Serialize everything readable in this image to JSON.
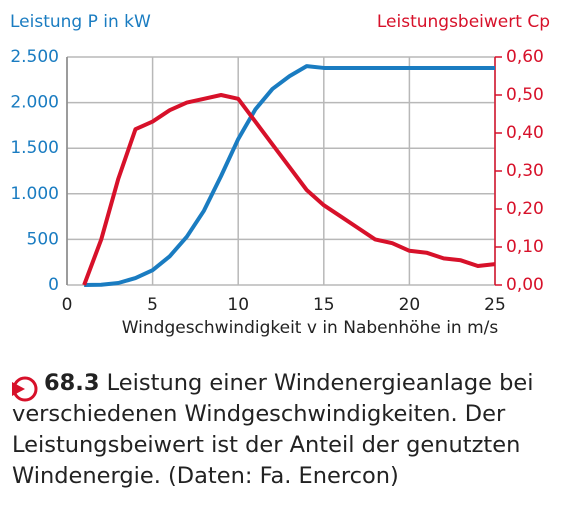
{
  "chart_data": {
    "type": "line",
    "y_label": "Leistung P in kW",
    "y2_label": "Leistungsbeiwert Cp",
    "x_label": "Windgeschwindigkeit v in Nabenhöhe in m/s",
    "x": [
      1,
      2,
      3,
      4,
      5,
      6,
      7,
      8,
      9,
      10,
      11,
      12,
      13,
      14,
      15,
      16,
      17,
      18,
      19,
      20,
      21,
      22,
      23,
      24,
      25
    ],
    "series": [
      {
        "name": "Leistung P",
        "color": "#1a7cc1",
        "values": [
          0,
          3,
          22,
          76,
          163,
          315,
          530,
          815,
          1195,
          1600,
          1925,
          2150,
          2290,
          2400,
          2380,
          2380,
          2380,
          2380,
          2380,
          2380,
          2380,
          2380,
          2380,
          2380,
          2380
        ]
      },
      {
        "name": "Leistungsbeiwert Cp",
        "color": "#d7112a",
        "axis": "y2",
        "values": [
          0,
          0.12,
          0.28,
          0.41,
          0.43,
          0.46,
          0.48,
          0.49,
          0.5,
          0.49,
          0.43,
          0.37,
          0.31,
          0.25,
          0.21,
          0.18,
          0.15,
          0.12,
          0.11,
          0.09,
          0.085,
          0.07,
          0.065,
          0.05,
          0.055
        ]
      }
    ],
    "xlim": [
      0,
      25
    ],
    "xticks": [
      0,
      5,
      10,
      15,
      20,
      25
    ],
    "ylim": [
      0,
      2500
    ],
    "yticks": [
      0,
      500,
      {
        "value": 1000,
        "label": "1.000"
      },
      {
        "value": 1500,
        "label": "1.500"
      },
      {
        "value": 2000,
        "label": "2.000"
      },
      {
        "value": 2500,
        "label": "2.500"
      }
    ],
    "y2lim": [
      0,
      0.6
    ],
    "y2ticks": [
      {
        "value": 0,
        "label": "0,00"
      },
      {
        "value": 0.1,
        "label": "0,10"
      },
      {
        "value": 0.2,
        "label": "0,20"
      },
      {
        "value": 0.3,
        "label": "0,30"
      },
      {
        "value": 0.4,
        "label": "0,40"
      },
      {
        "value": 0.5,
        "label": "0,50"
      },
      {
        "value": 0.6,
        "label": "0,60"
      }
    ],
    "grid": true
  },
  "caption": {
    "number": "68.3",
    "text": "Leistung einer Windenergieanlage bei verschiedenen Windgeschwindigkeiten. Der Leistungsbeiwert ist der Anteil der genutzten Windenergie. (Daten: Fa. Enercon)"
  }
}
